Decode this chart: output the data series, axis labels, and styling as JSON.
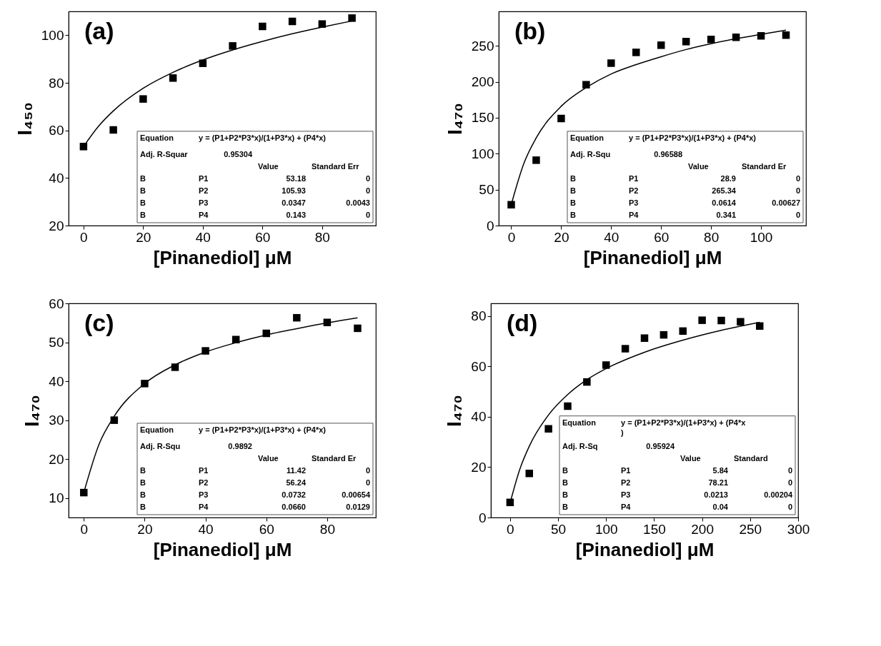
{
  "chart_data": [
    {
      "type": "scatter",
      "title": "(a)",
      "xlabel": "[Pinanediol] μM",
      "ylabel": "I₄₅₀",
      "xlim": [
        -5,
        98
      ],
      "xticks": [
        0,
        20,
        40,
        60,
        80
      ],
      "ylim": [
        20,
        110
      ],
      "yticks": [
        20,
        40,
        60,
        80,
        100
      ],
      "series": [
        {
          "type": "scatter",
          "marker": "square",
          "color": "#000000",
          "x": [
            0,
            10,
            20,
            30,
            40,
            50,
            60,
            70,
            80,
            90
          ],
          "values": [
            53.2,
            60.2,
            73.2,
            82,
            88.2,
            95.5,
            103.7,
            105.8,
            104.7,
            107.2
          ]
        },
        {
          "type": "line",
          "color": "#000000",
          "x": [
            0,
            5,
            10,
            20,
            30,
            40,
            50,
            60,
            70,
            80,
            90
          ],
          "values": [
            53.2,
            61.7,
            68.2,
            77.7,
            84.4,
            89.6,
            93.8,
            97.4,
            100.6,
            103.4,
            106.0
          ]
        }
      ],
      "annotations": [
        "Equation",
        "y = (P1+P2*P3*x)/(1+P3*x) + (P4*x)",
        "Adj. R-Squar",
        "0.95304",
        "Value",
        "Standard Err",
        "B",
        "P1",
        "53.18",
        "0",
        "B",
        "P2",
        "105.93",
        "0",
        "B",
        "P3",
        "0.0347",
        "0.0043",
        "B",
        "P4",
        "0.143",
        "0"
      ]
    },
    {
      "type": "scatter",
      "title": "(b)",
      "xlabel": "[Pinanediol] μM",
      "ylabel": "I₄₇₀",
      "xlim": [
        -5,
        118
      ],
      "xticks": [
        0,
        20,
        40,
        60,
        80,
        100
      ],
      "ylim": [
        0,
        298
      ],
      "yticks": [
        0,
        50,
        100,
        150,
        200,
        250
      ],
      "series": [
        {
          "type": "scatter",
          "marker": "square",
          "color": "#000000",
          "x": [
            0,
            10,
            20,
            30,
            40,
            50,
            60,
            70,
            80,
            90,
            100,
            110
          ],
          "values": [
            29,
            91,
            149,
            196,
            226,
            241,
            251,
            256,
            259,
            262,
            264,
            265
          ]
        },
        {
          "type": "line",
          "color": "#000000",
          "x": [
            0,
            5,
            10,
            20,
            30,
            40,
            50,
            60,
            70,
            80,
            90,
            100,
            110
          ],
          "values": [
            29,
            86,
            122,
            166,
            192,
            211,
            224,
            235,
            245,
            253,
            260,
            266,
            272
          ]
        }
      ],
      "annotations": [
        "Equation",
        "y = (P1+P2*P3*x)/(1+P3*x) + (P4*x)",
        "Adj. R-Squ",
        "0.96588",
        "Value",
        "Standard Er",
        "B",
        "P1",
        "28.9",
        "0",
        "B",
        "P2",
        "265.34",
        "0",
        "B",
        "P3",
        "0.0614",
        "0.00627",
        "B",
        "P4",
        "0.341",
        "0"
      ]
    },
    {
      "type": "scatter",
      "title": "(c)",
      "xlabel": "[Pinanediol] μM",
      "ylabel": "I₄₇₀",
      "xlim": [
        -5,
        96
      ],
      "xticks": [
        0,
        20,
        40,
        60,
        80
      ],
      "ylim": [
        5,
        60
      ],
      "yticks": [
        10,
        20,
        30,
        40,
        50,
        60
      ],
      "series": [
        {
          "type": "scatter",
          "marker": "square",
          "color": "#000000",
          "x": [
            0,
            10,
            20,
            30,
            40,
            50,
            60,
            70,
            80,
            90
          ],
          "values": [
            11.4,
            30,
            39.4,
            43.6,
            47.8,
            50.7,
            52.3,
            56.3,
            55.1,
            53.6
          ]
        },
        {
          "type": "line",
          "color": "#000000",
          "x": [
            0,
            5,
            10,
            20,
            30,
            40,
            50,
            60,
            70,
            80,
            90
          ],
          "values": [
            11.4,
            23.8,
            31.0,
            39.4,
            44.2,
            47.5,
            49.9,
            51.9,
            53.5,
            55.0,
            56.3
          ]
        }
      ],
      "annotations": [
        "Equation",
        "y = (P1+P2*P3*x)/(1+P3*x) + (P4*x)",
        "Adj. R-Squ",
        "0.9892",
        "Value",
        "Standard Er",
        "B",
        "P1",
        "11.42",
        "0",
        "B",
        "P2",
        "56.24",
        "0",
        "B",
        "P3",
        "0.0732",
        "0.00654",
        "B",
        "P4",
        "0.0660",
        "0.0129"
      ]
    },
    {
      "type": "scatter",
      "title": "(d)",
      "xlabel": "[Pinanediol] μM",
      "ylabel": "I₄₇₀",
      "xlim": [
        -20,
        300
      ],
      "xticks": [
        0,
        50,
        100,
        150,
        200,
        250,
        300
      ],
      "ylim": [
        0,
        85
      ],
      "yticks": [
        0,
        20,
        40,
        60,
        80
      ],
      "series": [
        {
          "type": "scatter",
          "marker": "square",
          "color": "#000000",
          "x": [
            0,
            20,
            40,
            60,
            80,
            100,
            120,
            140,
            160,
            180,
            200,
            220,
            240,
            260
          ],
          "values": [
            6,
            17.5,
            35.2,
            44.2,
            53.8,
            60.5,
            67,
            71.2,
            72.5,
            74,
            78.3,
            78.2,
            77.7,
            76
          ]
        },
        {
          "type": "line",
          "color": "#000000",
          "x": [
            0,
            10,
            20,
            40,
            60,
            80,
            100,
            140,
            180,
            220,
            260
          ],
          "values": [
            5.8,
            19.0,
            28.3,
            40.7,
            48.8,
            54.7,
            59.1,
            65.6,
            70.4,
            74.3,
            77.5
          ]
        }
      ],
      "annotations": [
        "Equation",
        "y = (P1+P2*P3*x)/(1+P3*x) + (P4*x",
        ")",
        "Adj. R-Sq",
        "0.95924",
        "Value",
        "Standard",
        "B",
        "P1",
        "5.84",
        "0",
        "B",
        "P2",
        "78.21",
        "0",
        "B",
        "P3",
        "0.0213",
        "0.00204",
        "B",
        "P4",
        "0.04",
        "0"
      ]
    }
  ]
}
